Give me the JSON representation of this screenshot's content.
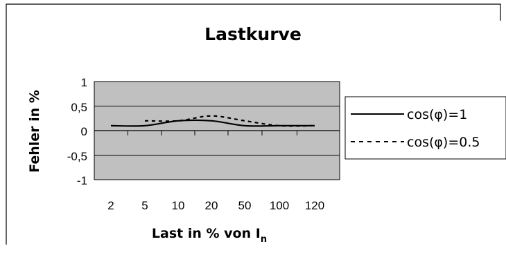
{
  "chart_data": {
    "type": "line",
    "title": "Lastkurve",
    "xlabel": "Last in % von I",
    "xlabel_subscript": "n",
    "ylabel": "Fehler in %",
    "categories": [
      "2",
      "5",
      "10",
      "20",
      "50",
      "100",
      "120"
    ],
    "yticks": [
      "1",
      "0,5",
      "0",
      "-0,5",
      "-1"
    ],
    "ylim": [
      -1,
      1
    ],
    "grid": true,
    "legend_position": "right",
    "colors": {
      "plot_background": "#c0c0c0",
      "line": "#000000",
      "frame": "#000000"
    },
    "series": [
      {
        "name": "cos(φ)=1",
        "style": "solid",
        "values": [
          0.1,
          0.1,
          0.2,
          0.2,
          0.1,
          0.1,
          0.1
        ]
      },
      {
        "name": "cos(φ)=0.5",
        "style": "dashed",
        "values": [
          null,
          0.2,
          0.2,
          0.3,
          0.2,
          0.1,
          0.1
        ]
      }
    ]
  }
}
